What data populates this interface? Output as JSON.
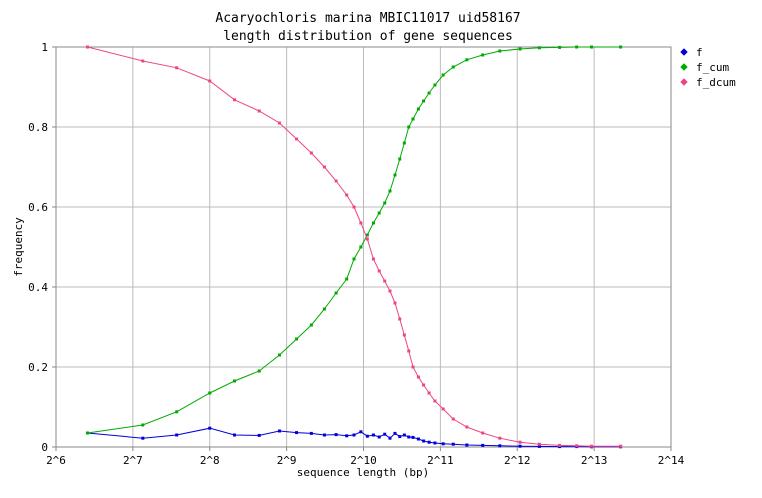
{
  "chart_data": {
    "type": "line",
    "title": "Acaryochloris marina MBIC11017 uid58167",
    "subtitle": "length distribution of gene sequences",
    "xlabel": "sequence length (bp)",
    "ylabel": "frequency",
    "x_scale": "log2",
    "xlim": [
      64,
      16384
    ],
    "ylim": [
      0,
      1
    ],
    "x_ticks": [
      {
        "value": 64,
        "label": "2^6"
      },
      {
        "value": 128,
        "label": "2^7"
      },
      {
        "value": 256,
        "label": "2^8"
      },
      {
        "value": 512,
        "label": "2^9"
      },
      {
        "value": 1024,
        "label": "2^10"
      },
      {
        "value": 2048,
        "label": "2^11"
      },
      {
        "value": 4096,
        "label": "2^12"
      },
      {
        "value": 8192,
        "label": "2^13"
      },
      {
        "value": 16384,
        "label": "2^14"
      }
    ],
    "y_ticks": [
      {
        "value": 0,
        "label": "0"
      },
      {
        "value": 0.2,
        "label": "0.2"
      },
      {
        "value": 0.4,
        "label": "0.4"
      },
      {
        "value": 0.6,
        "label": "0.6"
      },
      {
        "value": 0.8,
        "label": "0.8"
      },
      {
        "value": 1,
        "label": "1"
      }
    ],
    "grid": true,
    "legend_position": "right-top",
    "series": [
      {
        "name": "f",
        "color": "#0000dd",
        "points": [
          [
            85,
            0.035
          ],
          [
            140,
            0.022
          ],
          [
            190,
            0.03
          ],
          [
            256,
            0.047
          ],
          [
            320,
            0.03
          ],
          [
            400,
            0.029
          ],
          [
            480,
            0.04
          ],
          [
            560,
            0.036
          ],
          [
            640,
            0.034
          ],
          [
            720,
            0.03
          ],
          [
            800,
            0.031
          ],
          [
            880,
            0.028
          ],
          [
            940,
            0.03
          ],
          [
            1000,
            0.038
          ],
          [
            1060,
            0.027
          ],
          [
            1120,
            0.03
          ],
          [
            1180,
            0.025
          ],
          [
            1240,
            0.032
          ],
          [
            1300,
            0.022
          ],
          [
            1360,
            0.034
          ],
          [
            1420,
            0.026
          ],
          [
            1480,
            0.03
          ],
          [
            1540,
            0.025
          ],
          [
            1600,
            0.024
          ],
          [
            1680,
            0.02
          ],
          [
            1760,
            0.015
          ],
          [
            1850,
            0.012
          ],
          [
            1950,
            0.01
          ],
          [
            2100,
            0.008
          ],
          [
            2300,
            0.007
          ],
          [
            2600,
            0.005
          ],
          [
            3000,
            0.004
          ],
          [
            3500,
            0.003
          ],
          [
            4200,
            0.002
          ],
          [
            5000,
            0.0015
          ],
          [
            6000,
            0.001
          ],
          [
            7000,
            0.001
          ],
          [
            8000,
            0.0005
          ],
          [
            10400,
            0.0005
          ]
        ]
      },
      {
        "name": "f_cum",
        "color": "#00aa00",
        "points": [
          [
            85,
            0.035
          ],
          [
            140,
            0.055
          ],
          [
            190,
            0.088
          ],
          [
            256,
            0.135
          ],
          [
            320,
            0.165
          ],
          [
            400,
            0.19
          ],
          [
            480,
            0.23
          ],
          [
            560,
            0.27
          ],
          [
            640,
            0.305
          ],
          [
            720,
            0.345
          ],
          [
            800,
            0.385
          ],
          [
            880,
            0.42
          ],
          [
            940,
            0.47
          ],
          [
            1000,
            0.5
          ],
          [
            1060,
            0.53
          ],
          [
            1120,
            0.56
          ],
          [
            1180,
            0.585
          ],
          [
            1240,
            0.61
          ],
          [
            1300,
            0.64
          ],
          [
            1360,
            0.68
          ],
          [
            1420,
            0.72
          ],
          [
            1480,
            0.76
          ],
          [
            1540,
            0.8
          ],
          [
            1600,
            0.82
          ],
          [
            1680,
            0.845
          ],
          [
            1760,
            0.865
          ],
          [
            1850,
            0.885
          ],
          [
            1950,
            0.905
          ],
          [
            2100,
            0.93
          ],
          [
            2300,
            0.95
          ],
          [
            2600,
            0.968
          ],
          [
            3000,
            0.98
          ],
          [
            3500,
            0.99
          ],
          [
            4200,
            0.995
          ],
          [
            5000,
            0.998
          ],
          [
            6000,
            0.999
          ],
          [
            7000,
            1.0
          ],
          [
            8000,
            1.0
          ],
          [
            10400,
            1.0
          ]
        ]
      },
      {
        "name": "f_dcum",
        "color": "#ee4488",
        "points": [
          [
            85,
            1.0
          ],
          [
            140,
            0.965
          ],
          [
            190,
            0.948
          ],
          [
            256,
            0.915
          ],
          [
            320,
            0.868
          ],
          [
            400,
            0.84
          ],
          [
            480,
            0.81
          ],
          [
            560,
            0.77
          ],
          [
            640,
            0.735
          ],
          [
            720,
            0.7
          ],
          [
            800,
            0.665
          ],
          [
            880,
            0.63
          ],
          [
            940,
            0.6
          ],
          [
            1000,
            0.56
          ],
          [
            1060,
            0.52
          ],
          [
            1120,
            0.47
          ],
          [
            1180,
            0.44
          ],
          [
            1240,
            0.415
          ],
          [
            1300,
            0.39
          ],
          [
            1360,
            0.36
          ],
          [
            1420,
            0.32
          ],
          [
            1480,
            0.28
          ],
          [
            1540,
            0.24
          ],
          [
            1600,
            0.2
          ],
          [
            1680,
            0.175
          ],
          [
            1760,
            0.155
          ],
          [
            1850,
            0.135
          ],
          [
            1950,
            0.115
          ],
          [
            2100,
            0.095
          ],
          [
            2300,
            0.07
          ],
          [
            2600,
            0.05
          ],
          [
            3000,
            0.035
          ],
          [
            3500,
            0.022
          ],
          [
            4200,
            0.012
          ],
          [
            5000,
            0.007
          ],
          [
            6000,
            0.004
          ],
          [
            7000,
            0.003
          ],
          [
            8000,
            0.002
          ],
          [
            10400,
            0.002
          ]
        ]
      }
    ]
  }
}
